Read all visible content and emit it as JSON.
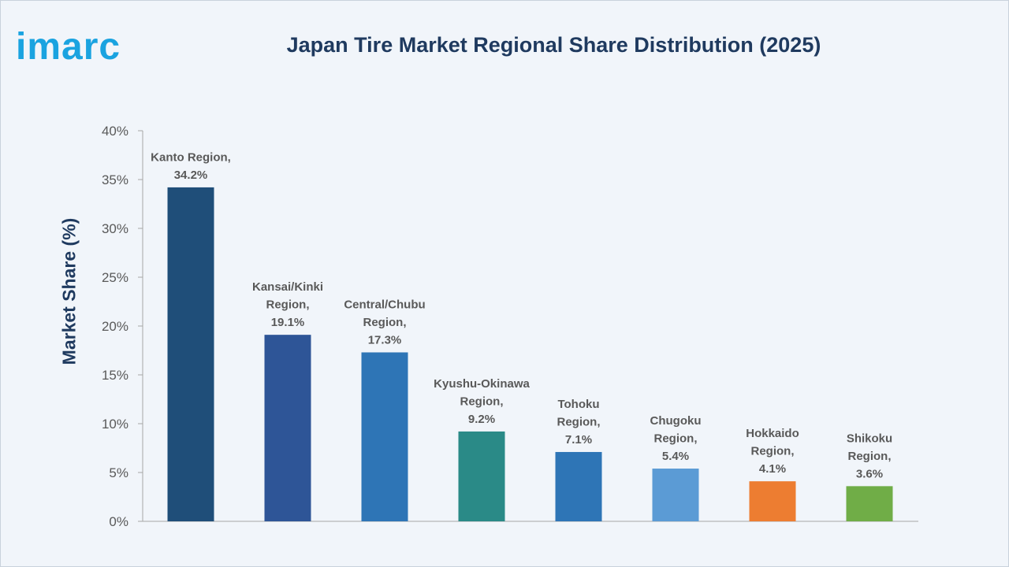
{
  "logo": {
    "text": "imarc"
  },
  "title": "Japan Tire Market Regional Share Distribution (2025)",
  "chart_data": {
    "type": "bar",
    "title": "Japan Tire Market Regional Share Distribution (2025)",
    "xlabel": "",
    "ylabel": "Market Share (%)",
    "ylim": [
      0,
      40
    ],
    "ytick_step": 5,
    "ytick_suffix": "%",
    "grid": false,
    "categories": [
      "Kanto Region",
      "Kansai/Kinki Region",
      "Central/Chubu Region",
      "Kyushu-Okinawa Region",
      "Tohoku Region",
      "Chugoku Region",
      "Hokkaido Region",
      "Shikoku Region"
    ],
    "values": [
      34.2,
      19.1,
      17.3,
      9.2,
      7.1,
      5.4,
      4.1,
      3.6
    ],
    "data_labels": [
      [
        "Kanto Region,",
        "34.2%"
      ],
      [
        "Kansai/Kinki",
        "Region,",
        "19.1%"
      ],
      [
        "Central/Chubu",
        "Region,",
        "17.3%"
      ],
      [
        "Kyushu-Okinawa",
        "Region,",
        "9.2%"
      ],
      [
        "Tohoku",
        "Region,",
        "7.1%"
      ],
      [
        "Chugoku",
        "Region,",
        "5.4%"
      ],
      [
        "Hokkaido",
        "Region,",
        "4.1%"
      ],
      [
        "Shikoku",
        "Region,",
        "3.6%"
      ]
    ],
    "colors": [
      "#1f4e79",
      "#2e5597",
      "#2e75b6",
      "#2a8a87",
      "#2e75b6",
      "#5b9bd5",
      "#ed7d31",
      "#70ad47"
    ]
  }
}
